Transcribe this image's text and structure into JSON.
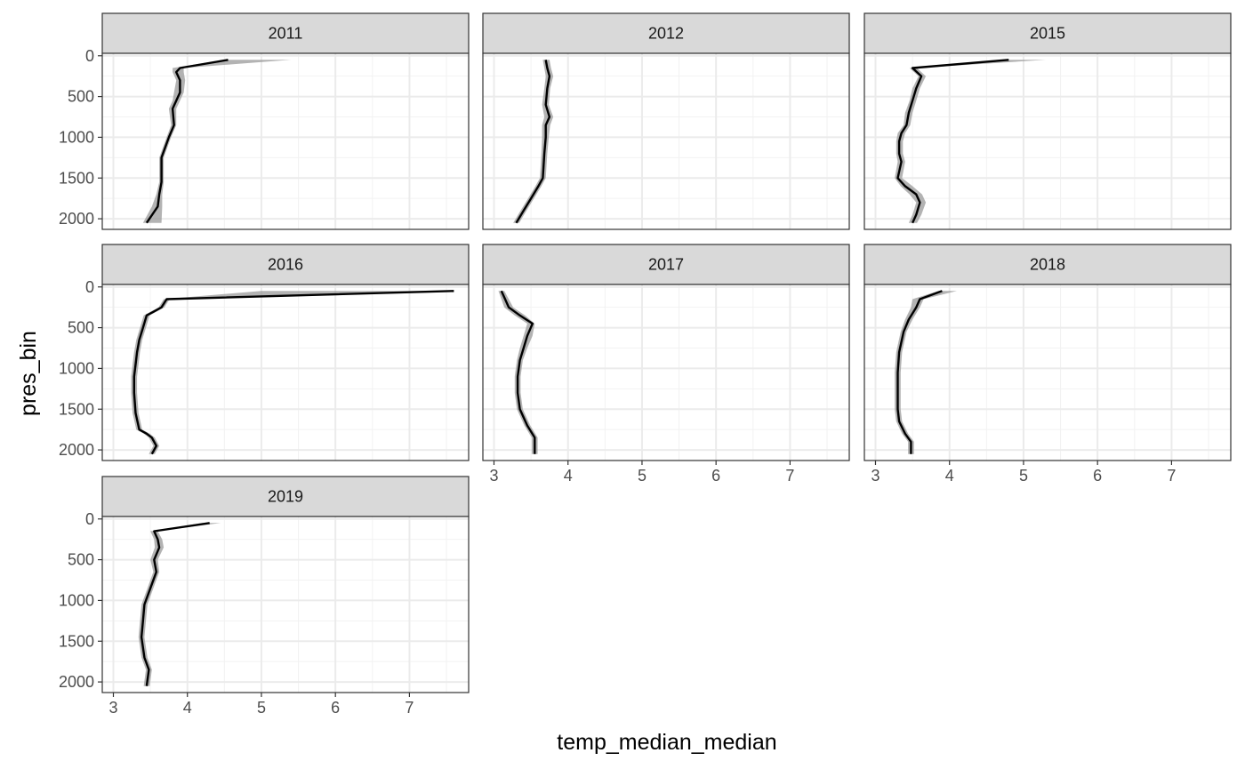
{
  "chart_data": {
    "type": "line",
    "xlabel": "temp_median_median",
    "ylabel": "pres_bin",
    "xlim": [
      2.85,
      7.8
    ],
    "ylim": [
      2130,
      -30
    ],
    "x_ticks": [
      3,
      4,
      5,
      6,
      7
    ],
    "y_ticks": [
      0,
      500,
      1000,
      1500,
      2000
    ],
    "grid": true,
    "y_reversed": true,
    "colors": {
      "line": "#000000",
      "ribbon": "#999999",
      "strip_fill": "#d9d9d9",
      "panel_border": "#333333",
      "grid": "#ebebeb"
    },
    "panels": [
      {
        "label": "2011",
        "line": [
          [
            4.55,
            50
          ],
          [
            3.9,
            150
          ],
          [
            3.85,
            200
          ],
          [
            3.9,
            300
          ],
          [
            3.9,
            450
          ],
          [
            3.85,
            550
          ],
          [
            3.8,
            650
          ],
          [
            3.82,
            850
          ],
          [
            3.75,
            1000
          ],
          [
            3.65,
            1250
          ],
          [
            3.65,
            1550
          ],
          [
            3.62,
            1700
          ],
          [
            3.6,
            1850
          ],
          [
            3.45,
            2050
          ]
        ],
        "ribbon": [
          [
            5.4,
            50,
            4.5
          ],
          [
            3.95,
            150,
            3.8
          ],
          [
            3.95,
            200,
            3.8
          ],
          [
            3.97,
            300,
            3.85
          ],
          [
            3.95,
            450,
            3.82
          ],
          [
            3.9,
            550,
            3.8
          ],
          [
            3.85,
            650,
            3.75
          ],
          [
            3.85,
            850,
            3.78
          ],
          [
            3.78,
            1000,
            3.72
          ],
          [
            3.68,
            1250,
            3.62
          ],
          [
            3.68,
            1550,
            3.62
          ],
          [
            3.66,
            1700,
            3.58
          ],
          [
            3.66,
            1850,
            3.52
          ],
          [
            3.65,
            2050,
            3.4
          ]
        ]
      },
      {
        "label": "2012",
        "line": [
          [
            3.7,
            50
          ],
          [
            3.72,
            150
          ],
          [
            3.75,
            250
          ],
          [
            3.72,
            400
          ],
          [
            3.7,
            600
          ],
          [
            3.75,
            750
          ],
          [
            3.7,
            850
          ],
          [
            3.7,
            1000
          ],
          [
            3.68,
            1200
          ],
          [
            3.66,
            1500
          ],
          [
            3.6,
            1600
          ],
          [
            3.5,
            1750
          ],
          [
            3.4,
            1900
          ],
          [
            3.3,
            2050
          ]
        ],
        "ribbon": [
          [
            3.75,
            50,
            3.66
          ],
          [
            3.77,
            150,
            3.68
          ],
          [
            3.8,
            250,
            3.7
          ],
          [
            3.76,
            400,
            3.68
          ],
          [
            3.74,
            600,
            3.65
          ],
          [
            3.8,
            750,
            3.68
          ],
          [
            3.76,
            850,
            3.65
          ],
          [
            3.74,
            1000,
            3.65
          ],
          [
            3.72,
            1200,
            3.64
          ],
          [
            3.7,
            1500,
            3.62
          ],
          [
            3.64,
            1600,
            3.56
          ],
          [
            3.54,
            1750,
            3.46
          ],
          [
            3.44,
            1900,
            3.36
          ],
          [
            3.34,
            2050,
            3.26
          ]
        ]
      },
      {
        "label": "2015",
        "line": [
          [
            4.8,
            50
          ],
          [
            3.5,
            150
          ],
          [
            3.62,
            250
          ],
          [
            3.55,
            400
          ],
          [
            3.5,
            550
          ],
          [
            3.45,
            700
          ],
          [
            3.42,
            850
          ],
          [
            3.35,
            950
          ],
          [
            3.32,
            1050
          ],
          [
            3.32,
            1200
          ],
          [
            3.35,
            1300
          ],
          [
            3.3,
            1500
          ],
          [
            3.4,
            1600
          ],
          [
            3.55,
            1700
          ],
          [
            3.6,
            1800
          ],
          [
            3.55,
            1950
          ],
          [
            3.5,
            2050
          ]
        ],
        "ribbon": [
          [
            5.3,
            50,
            4.7
          ],
          [
            3.56,
            150,
            3.46
          ],
          [
            3.68,
            250,
            3.58
          ],
          [
            3.6,
            400,
            3.5
          ],
          [
            3.55,
            550,
            3.46
          ],
          [
            3.5,
            700,
            3.4
          ],
          [
            3.47,
            850,
            3.38
          ],
          [
            3.4,
            950,
            3.3
          ],
          [
            3.37,
            1050,
            3.28
          ],
          [
            3.37,
            1200,
            3.28
          ],
          [
            3.4,
            1300,
            3.3
          ],
          [
            3.36,
            1500,
            3.26
          ],
          [
            3.5,
            1600,
            3.34
          ],
          [
            3.63,
            1700,
            3.46
          ],
          [
            3.68,
            1800,
            3.55
          ],
          [
            3.62,
            1950,
            3.5
          ],
          [
            3.56,
            2050,
            3.45
          ]
        ]
      },
      {
        "label": "2016",
        "line": [
          [
            7.6,
            50
          ],
          [
            3.72,
            150
          ],
          [
            3.65,
            250
          ],
          [
            3.55,
            300
          ],
          [
            3.45,
            350
          ],
          [
            3.4,
            500
          ],
          [
            3.35,
            650
          ],
          [
            3.32,
            800
          ],
          [
            3.3,
            950
          ],
          [
            3.28,
            1100
          ],
          [
            3.28,
            1300
          ],
          [
            3.3,
            1550
          ],
          [
            3.35,
            1750
          ],
          [
            3.45,
            1800
          ],
          [
            3.52,
            1850
          ],
          [
            3.58,
            1950
          ],
          [
            3.52,
            2050
          ]
        ],
        "ribbon": [
          [
            7.55,
            50,
            5.0
          ],
          [
            3.76,
            150,
            3.68
          ],
          [
            3.69,
            250,
            3.61
          ],
          [
            3.59,
            300,
            3.51
          ],
          [
            3.49,
            350,
            3.41
          ],
          [
            3.44,
            500,
            3.36
          ],
          [
            3.39,
            650,
            3.31
          ],
          [
            3.36,
            800,
            3.28
          ],
          [
            3.34,
            950,
            3.26
          ],
          [
            3.32,
            1100,
            3.24
          ],
          [
            3.32,
            1300,
            3.24
          ],
          [
            3.34,
            1550,
            3.26
          ],
          [
            3.39,
            1750,
            3.31
          ],
          [
            3.49,
            1800,
            3.41
          ],
          [
            3.56,
            1850,
            3.48
          ],
          [
            3.62,
            1950,
            3.54
          ],
          [
            3.56,
            2050,
            3.48
          ]
        ]
      },
      {
        "label": "2017",
        "line": [
          [
            3.1,
            50
          ],
          [
            3.15,
            150
          ],
          [
            3.2,
            250
          ],
          [
            3.35,
            350
          ],
          [
            3.52,
            450
          ],
          [
            3.45,
            600
          ],
          [
            3.4,
            750
          ],
          [
            3.35,
            900
          ],
          [
            3.32,
            1100
          ],
          [
            3.32,
            1300
          ],
          [
            3.35,
            1500
          ],
          [
            3.45,
            1700
          ],
          [
            3.55,
            1850
          ],
          [
            3.55,
            2050
          ]
        ],
        "ribbon": [
          [
            3.14,
            50,
            3.06
          ],
          [
            3.2,
            150,
            3.1
          ],
          [
            3.26,
            250,
            3.14
          ],
          [
            3.42,
            350,
            3.28
          ],
          [
            3.55,
            450,
            3.45
          ],
          [
            3.52,
            600,
            3.4
          ],
          [
            3.45,
            750,
            3.35
          ],
          [
            3.39,
            900,
            3.31
          ],
          [
            3.36,
            1100,
            3.28
          ],
          [
            3.36,
            1300,
            3.28
          ],
          [
            3.39,
            1500,
            3.31
          ],
          [
            3.49,
            1700,
            3.41
          ],
          [
            3.59,
            1850,
            3.51
          ],
          [
            3.59,
            2050,
            3.51
          ]
        ]
      },
      {
        "label": "2018",
        "line": [
          [
            3.9,
            50
          ],
          [
            3.6,
            150
          ],
          [
            3.55,
            250
          ],
          [
            3.45,
            400
          ],
          [
            3.38,
            550
          ],
          [
            3.32,
            800
          ],
          [
            3.3,
            1050
          ],
          [
            3.3,
            1300
          ],
          [
            3.3,
            1500
          ],
          [
            3.32,
            1650
          ],
          [
            3.4,
            1800
          ],
          [
            3.48,
            1900
          ],
          [
            3.48,
            2050
          ]
        ],
        "ribbon": [
          [
            4.1,
            50,
            3.85
          ],
          [
            3.65,
            150,
            3.5
          ],
          [
            3.6,
            250,
            3.48
          ],
          [
            3.5,
            400,
            3.4
          ],
          [
            3.42,
            550,
            3.34
          ],
          [
            3.36,
            800,
            3.28
          ],
          [
            3.34,
            1050,
            3.26
          ],
          [
            3.34,
            1300,
            3.26
          ],
          [
            3.34,
            1500,
            3.26
          ],
          [
            3.36,
            1650,
            3.28
          ],
          [
            3.44,
            1800,
            3.36
          ],
          [
            3.52,
            1900,
            3.44
          ],
          [
            3.52,
            2050,
            3.44
          ]
        ]
      },
      {
        "label": "2019",
        "line": [
          [
            4.3,
            50
          ],
          [
            3.55,
            150
          ],
          [
            3.6,
            250
          ],
          [
            3.62,
            350
          ],
          [
            3.55,
            500
          ],
          [
            3.58,
            650
          ],
          [
            3.5,
            850
          ],
          [
            3.42,
            1050
          ],
          [
            3.4,
            1250
          ],
          [
            3.38,
            1450
          ],
          [
            3.42,
            1700
          ],
          [
            3.48,
            1850
          ],
          [
            3.45,
            2050
          ]
        ],
        "ribbon": [
          [
            4.45,
            50,
            4.2
          ],
          [
            3.6,
            150,
            3.5
          ],
          [
            3.66,
            250,
            3.55
          ],
          [
            3.68,
            350,
            3.56
          ],
          [
            3.6,
            500,
            3.5
          ],
          [
            3.62,
            650,
            3.54
          ],
          [
            3.54,
            850,
            3.46
          ],
          [
            3.46,
            1050,
            3.38
          ],
          [
            3.44,
            1250,
            3.36
          ],
          [
            3.42,
            1450,
            3.34
          ],
          [
            3.46,
            1700,
            3.38
          ],
          [
            3.52,
            1850,
            3.44
          ],
          [
            3.49,
            2050,
            3.41
          ]
        ]
      }
    ]
  }
}
